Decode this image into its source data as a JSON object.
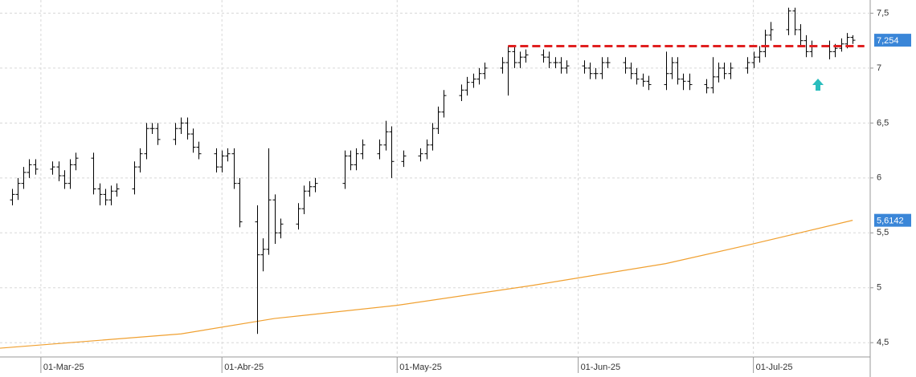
{
  "chart_data": {
    "type": "ohlc",
    "color": "#000000",
    "x": [
      "2025-02-24",
      "2025-02-25",
      "2025-02-26",
      "2025-02-27",
      "2025-02-28",
      "2025-03-03",
      "2025-03-04",
      "2025-03-05",
      "2025-03-06",
      "2025-03-07",
      "2025-03-10",
      "2025-03-11",
      "2025-03-12",
      "2025-03-13",
      "2025-03-14",
      "2025-03-17",
      "2025-03-18",
      "2025-03-19",
      "2025-03-20",
      "2025-03-21",
      "2025-03-24",
      "2025-03-25",
      "2025-03-26",
      "2025-03-27",
      "2025-03-28",
      "2025-03-31",
      "2025-04-01",
      "2025-04-02",
      "2025-04-03",
      "2025-04-04",
      "2025-04-07",
      "2025-04-08",
      "2025-04-09",
      "2025-04-10",
      "2025-04-11",
      "2025-04-14",
      "2025-04-15",
      "2025-04-16",
      "2025-04-17",
      "2025-04-22",
      "2025-04-23",
      "2025-04-24",
      "2025-04-25",
      "2025-04-28",
      "2025-04-29",
      "2025-04-30",
      "2025-05-02",
      "2025-05-05",
      "2025-05-06",
      "2025-05-07",
      "2025-05-08",
      "2025-05-09",
      "2025-05-12",
      "2025-05-13",
      "2025-05-14",
      "2025-05-15",
      "2025-05-16",
      "2025-05-19",
      "2025-05-20",
      "2025-05-21",
      "2025-05-22",
      "2025-05-23",
      "2025-05-26",
      "2025-05-27",
      "2025-05-28",
      "2025-05-29",
      "2025-05-30",
      "2025-06-02",
      "2025-06-03",
      "2025-06-04",
      "2025-06-05",
      "2025-06-06",
      "2025-06-09",
      "2025-06-10",
      "2025-06-11",
      "2025-06-12",
      "2025-06-13",
      "2025-06-16",
      "2025-06-17",
      "2025-06-18",
      "2025-06-19",
      "2025-06-20",
      "2025-06-23",
      "2025-06-24",
      "2025-06-25",
      "2025-06-26",
      "2025-06-27",
      "2025-06-30",
      "2025-07-01",
      "2025-07-02",
      "2025-07-03",
      "2025-07-04",
      "2025-07-07",
      "2025-07-08",
      "2025-07-09",
      "2025-07-10",
      "2025-07-11",
      "2025-07-14",
      "2025-07-15",
      "2025-07-16",
      "2025-07-17",
      "2025-07-18"
    ],
    "open": [
      5.8,
      5.85,
      5.95,
      6.05,
      6.12,
      6.08,
      6.1,
      6.02,
      5.95,
      6.12,
      6.18,
      5.9,
      5.85,
      5.8,
      5.88,
      5.9,
      6.1,
      6.22,
      6.45,
      6.45,
      6.35,
      6.45,
      6.5,
      6.4,
      6.28,
      6.22,
      6.1,
      6.2,
      6.22,
      5.95,
      5.6,
      5.3,
      5.35,
      5.8,
      5.5,
      5.58,
      5.72,
      5.88,
      5.92,
      5.95,
      6.2,
      6.12,
      6.22,
      6.22,
      6.3,
      6.42,
      6.15,
      6.2,
      6.22,
      6.3,
      6.45,
      6.6,
      6.75,
      6.8,
      6.87,
      6.9,
      6.95,
      7.0,
      7.05,
      7.15,
      7.05,
      7.1,
      7.12,
      7.1,
      7.05,
      7.05,
      7.0,
      7.02,
      7.0,
      6.95,
      6.95,
      7.05,
      7.05,
      7.0,
      6.95,
      6.9,
      6.88,
      6.85,
      6.95,
      7.05,
      6.9,
      6.88,
      6.85,
      6.82,
      6.92,
      7.0,
      6.95,
      7.0,
      7.05,
      7.1,
      7.15,
      7.3,
      7.35,
      7.52,
      7.35,
      7.25,
      7.15,
      7.2,
      7.15,
      7.18,
      7.22,
      7.28
    ],
    "high": [
      5.9,
      6.0,
      6.1,
      6.17,
      6.17,
      6.15,
      6.15,
      6.07,
      6.17,
      6.23,
      6.23,
      5.95,
      5.9,
      5.93,
      5.95,
      6.15,
      6.27,
      6.5,
      6.5,
      6.5,
      6.5,
      6.55,
      6.55,
      6.45,
      6.33,
      6.27,
      6.25,
      6.27,
      6.27,
      6.0,
      5.75,
      5.45,
      6.27,
      5.85,
      5.63,
      5.77,
      5.93,
      5.97,
      6.0,
      6.25,
      6.25,
      6.27,
      6.35,
      6.35,
      6.52,
      6.47,
      6.25,
      6.27,
      6.35,
      6.5,
      6.65,
      6.8,
      6.85,
      6.92,
      6.95,
      7.0,
      7.05,
      7.1,
      7.2,
      7.2,
      7.15,
      7.17,
      7.17,
      7.15,
      7.1,
      7.1,
      7.07,
      7.07,
      7.05,
      7.0,
      7.1,
      7.1,
      7.1,
      7.05,
      7.0,
      6.95,
      6.93,
      7.15,
      7.1,
      7.1,
      6.95,
      6.95,
      6.9,
      7.1,
      7.05,
      7.05,
      7.05,
      7.1,
      7.15,
      7.2,
      7.35,
      7.42,
      7.55,
      7.55,
      7.4,
      7.3,
      7.25,
      7.25,
      7.22,
      7.27,
      7.32,
      7.3
    ],
    "low": [
      5.75,
      5.8,
      5.9,
      6.0,
      6.03,
      6.03,
      5.97,
      5.9,
      5.9,
      6.07,
      5.85,
      5.75,
      5.75,
      5.75,
      5.83,
      5.85,
      6.05,
      6.17,
      6.4,
      6.3,
      6.3,
      6.4,
      6.35,
      6.23,
      6.17,
      6.05,
      6.05,
      6.15,
      5.9,
      5.55,
      4.58,
      5.15,
      5.3,
      5.4,
      5.45,
      5.53,
      5.67,
      5.83,
      5.87,
      5.9,
      6.07,
      6.07,
      6.17,
      6.17,
      6.25,
      6.0,
      6.1,
      6.15,
      6.17,
      6.25,
      6.4,
      6.55,
      6.7,
      6.75,
      6.82,
      6.85,
      6.9,
      6.95,
      6.75,
      7.0,
      7.0,
      7.05,
      7.05,
      7.0,
      7.0,
      6.95,
      6.95,
      6.95,
      6.9,
      6.9,
      6.9,
      7.0,
      6.95,
      6.9,
      6.85,
      6.83,
      6.8,
      6.8,
      6.9,
      6.85,
      6.8,
      6.8,
      6.77,
      6.77,
      6.87,
      6.9,
      6.9,
      6.95,
      7.0,
      7.05,
      7.1,
      7.25,
      7.3,
      7.3,
      7.2,
      7.1,
      7.1,
      7.08,
      7.1,
      7.15,
      7.18,
      7.22
    ],
    "close": [
      5.85,
      5.95,
      6.05,
      6.12,
      6.08,
      6.1,
      6.02,
      5.95,
      6.12,
      6.18,
      5.9,
      5.85,
      5.8,
      5.88,
      5.9,
      6.1,
      6.22,
      6.45,
      6.45,
      6.35,
      6.45,
      6.5,
      6.4,
      6.28,
      6.22,
      6.1,
      6.2,
      6.22,
      5.95,
      5.6,
      5.3,
      5.35,
      5.8,
      5.5,
      5.58,
      5.72,
      5.88,
      5.92,
      5.95,
      6.2,
      6.12,
      6.22,
      6.3,
      6.3,
      6.42,
      6.15,
      6.2,
      6.22,
      6.3,
      6.45,
      6.6,
      6.75,
      6.8,
      6.87,
      6.9,
      6.95,
      7.0,
      7.05,
      7.15,
      7.05,
      7.1,
      7.12,
      7.1,
      7.05,
      7.05,
      7.0,
      7.02,
      7.0,
      6.95,
      6.95,
      7.05,
      7.05,
      7.0,
      6.95,
      6.9,
      6.88,
      6.85,
      6.95,
      7.05,
      6.9,
      6.88,
      6.85,
      6.82,
      6.92,
      7.0,
      6.95,
      7.0,
      7.05,
      7.1,
      7.15,
      7.3,
      7.35,
      7.52,
      7.35,
      7.25,
      7.15,
      7.2,
      7.15,
      7.18,
      7.22,
      7.28,
      7.254
    ],
    "moving_average": {
      "color": "#f0a030",
      "x": [
        "2025-02-22",
        "2025-03-25",
        "2025-04-10",
        "2025-05-01",
        "2025-05-24",
        "2025-06-16",
        "2025-07-01",
        "2025-07-18"
      ],
      "values": [
        4.45,
        4.58,
        4.72,
        4.84,
        5.02,
        5.22,
        5.4,
        5.6142
      ]
    },
    "resistance": {
      "color": "#e02020",
      "x": [
        "2025-05-20",
        "2025-07-20"
      ],
      "value": 7.2
    },
    "price_labels": [
      {
        "value": 7.254,
        "label": "7,254"
      },
      {
        "value": 5.6142,
        "label": "5,6142"
      }
    ],
    "xlim": [
      "2025-02-22",
      "2025-07-21"
    ],
    "xticks": [
      {
        "value": "2025-03-01",
        "label": "01-Mar-25"
      },
      {
        "value": "2025-04-01",
        "label": "01-Abr-25"
      },
      {
        "value": "2025-05-01",
        "label": "01-May-25"
      },
      {
        "value": "2025-06-01",
        "label": "01-Jun-25"
      },
      {
        "value": "2025-07-01",
        "label": "01-Jul-25"
      }
    ],
    "ylim": [
      4.37,
      7.62
    ],
    "yticks": [
      {
        "value": 4.5,
        "label": "4,5"
      },
      5,
      {
        "value": 5.5,
        "label": "5,5"
      },
      6,
      {
        "value": 6.5,
        "label": "6,5"
      },
      7,
      {
        "value": 7.5,
        "label": "7,5"
      }
    ],
    "grid": true
  }
}
